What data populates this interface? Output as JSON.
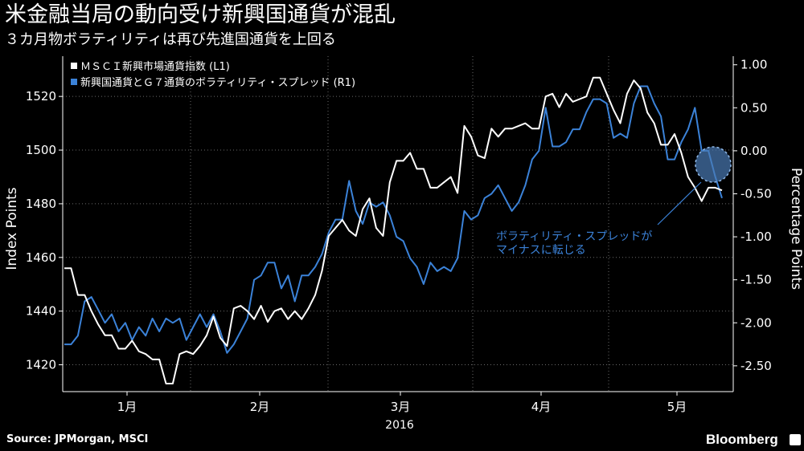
{
  "header": {
    "title": "米金融当局の動向受け新興国通貨が混乱",
    "subtitle": "３カ月物ボラティリティは再び先進国通貨を上回る"
  },
  "footer": {
    "source": "Source: JPMorgan, MSCI",
    "brand": "Bloomberg",
    "brand_icon": "bloomberg-terminal-icon"
  },
  "colors": {
    "background": "#000000",
    "series_white": "#ffffff",
    "series_blue": "#3b82d8",
    "grid": "#666666"
  },
  "chart_data": {
    "type": "line",
    "ylabel_left": "Index Points",
    "ylabel_right": "Percentage Points",
    "ylim_left": [
      1410,
      1535
    ],
    "ylim_right": [
      -2.8,
      1.1
    ],
    "yticks_left": [
      "1420",
      "1440",
      "1460",
      "1480",
      "1500",
      "1520"
    ],
    "yticks_right": [
      "-2.50",
      "-2.00",
      "-1.50",
      "-1.00",
      "-0.50",
      "0.00",
      "0.50",
      "1.00"
    ],
    "xticks": [
      "1月",
      "2月",
      "3月",
      "4月",
      "5月"
    ],
    "xyear": "2016",
    "legend_position": "top-left",
    "annotation": {
      "line1": "ボラティリティ・スプレッドが",
      "line2": "マイナスに転じる"
    },
    "series": [
      {
        "name": "ＭＳＣＩ新興市場通貨指数 (L1)",
        "axis": "left",
        "values": [
          1456,
          1456,
          1446,
          1446,
          1440,
          1435,
          1431,
          1431,
          1426,
          1426,
          1429,
          1425,
          1424,
          1422,
          1422,
          1413,
          1413,
          1424,
          1425,
          1424,
          1427,
          1431,
          1438,
          1430,
          1427,
          1441,
          1442,
          1440,
          1437,
          1442,
          1436,
          1440,
          1441,
          1437,
          1440,
          1437,
          1441,
          1446,
          1455,
          1468,
          1471,
          1474,
          1470,
          1468,
          1478,
          1482,
          1471,
          1468,
          1488,
          1496,
          1496,
          1499,
          1493,
          1493,
          1486,
          1486,
          1488,
          1490,
          1484,
          1509,
          1505,
          1498,
          1497,
          1508,
          1505,
          1508,
          1508,
          1509,
          1510,
          1508,
          1508,
          1520,
          1521,
          1516,
          1521,
          1518,
          1519,
          1520,
          1527,
          1527,
          1521,
          1515,
          1510,
          1521,
          1526,
          1523,
          1514,
          1510,
          1502,
          1502,
          1506,
          1499,
          1490,
          1486,
          1481,
          1486,
          1486,
          1485
        ]
      },
      {
        "name": "新興国通貨とＧ７通貨のボラティリティ・スプレッド (R1)",
        "axis": "right",
        "values": [
          -2.25,
          -2.25,
          -2.15,
          -1.75,
          -1.7,
          -1.85,
          -2.0,
          -1.9,
          -2.1,
          -2.0,
          -2.2,
          -2.05,
          -2.15,
          -1.95,
          -2.1,
          -1.95,
          -2.0,
          -1.95,
          -2.2,
          -2.05,
          -1.9,
          -2.05,
          -1.9,
          -2.1,
          -2.35,
          -2.25,
          -2.1,
          -1.95,
          -1.5,
          -1.45,
          -1.3,
          -1.3,
          -1.6,
          -1.45,
          -1.75,
          -1.45,
          -1.45,
          -1.35,
          -1.2,
          -0.95,
          -0.8,
          -0.8,
          -0.35,
          -0.7,
          -0.85,
          -0.6,
          -0.65,
          -0.6,
          -0.75,
          -1.0,
          -1.05,
          -1.25,
          -1.35,
          -1.55,
          -1.3,
          -1.4,
          -1.35,
          -1.4,
          -1.25,
          -0.7,
          -0.8,
          -0.75,
          -0.55,
          -0.5,
          -0.4,
          -0.55,
          -0.7,
          -0.6,
          -0.4,
          -0.1,
          0.0,
          0.5,
          0.05,
          0.05,
          0.1,
          0.25,
          0.25,
          0.45,
          0.6,
          0.6,
          0.55,
          0.15,
          0.2,
          0.15,
          0.55,
          0.75,
          0.75,
          0.55,
          0.4,
          -0.1,
          -0.1,
          0.1,
          0.25,
          0.5,
          0.0,
          0.0,
          -0.3,
          -0.55
        ]
      }
    ]
  }
}
